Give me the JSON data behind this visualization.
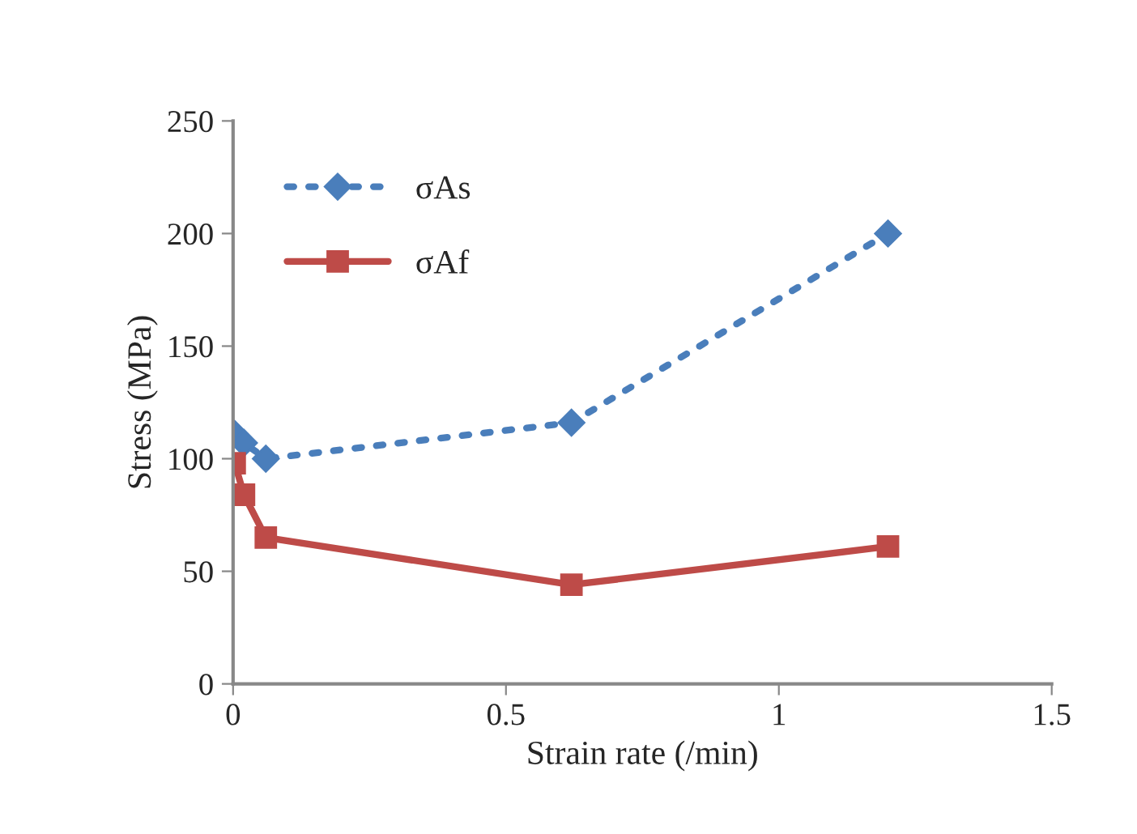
{
  "chart_data": {
    "type": "line",
    "xlabel": "Strain rate (/min)",
    "ylabel": "Stress (MPa)",
    "xlim": [
      0,
      1.5
    ],
    "xticks": [
      0,
      0.5,
      1,
      1.5
    ],
    "ylim": [
      0,
      250
    ],
    "yticks": [
      0,
      50,
      100,
      150,
      200,
      250
    ],
    "grid": false,
    "legend": "top left",
    "series": [
      {
        "name": "σAs",
        "color": "#4a7ebb",
        "marker": "diamond",
        "line_style": "dotted",
        "x": [
          0.003,
          0.02,
          0.06,
          0.62,
          1.2
        ],
        "values": [
          111,
          107,
          100,
          116,
          200
        ]
      },
      {
        "name": "σAf",
        "color": "#be4b48",
        "marker": "square",
        "line_style": "solid",
        "x": [
          0.003,
          0.02,
          0.06,
          0.62,
          1.2
        ],
        "values": [
          98,
          84,
          65,
          44,
          61
        ]
      }
    ]
  }
}
